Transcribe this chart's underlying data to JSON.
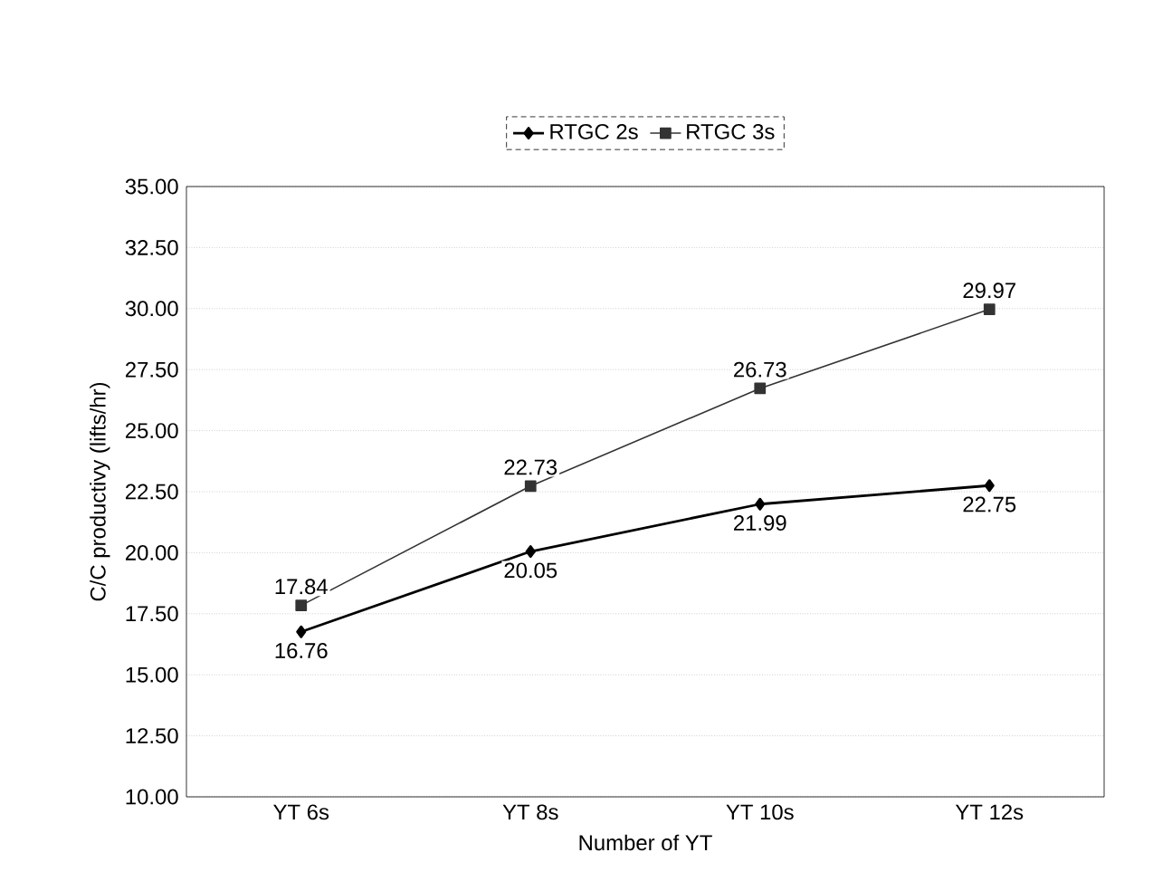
{
  "chart_data": {
    "type": "line",
    "xlabel": "Number of YT",
    "ylabel": "C/C productivy (lifts/hr)",
    "categories": [
      "YT 6s",
      "YT 8s",
      "YT 10s",
      "YT 12s"
    ],
    "series": [
      {
        "name": "RTGC 2s",
        "color": "#000000",
        "marker": "diamond",
        "values": [
          16.76,
          20.05,
          21.99,
          22.75
        ]
      },
      {
        "name": "RTGC 3s",
        "color": "#333333",
        "marker": "square",
        "values": [
          17.84,
          22.73,
          26.73,
          29.97
        ]
      }
    ],
    "ylim": [
      10,
      35
    ],
    "yticks": [
      {
        "value": 10,
        "label": "10.00"
      },
      {
        "value": 12.5,
        "label": "12.50"
      },
      {
        "value": 15,
        "label": "15.00"
      },
      {
        "value": 17.5,
        "label": "17.50"
      },
      {
        "value": 20,
        "label": "20.00"
      },
      {
        "value": 22.5,
        "label": "22.50"
      },
      {
        "value": 25,
        "label": "25.00"
      },
      {
        "value": 27.5,
        "label": "27.50"
      },
      {
        "value": 30,
        "label": "30.00"
      },
      {
        "value": 32.5,
        "label": "32.50"
      },
      {
        "value": 35,
        "label": "35.00"
      }
    ],
    "grid": "y",
    "legend": "top",
    "data_labels": true,
    "line_style": "solid"
  }
}
